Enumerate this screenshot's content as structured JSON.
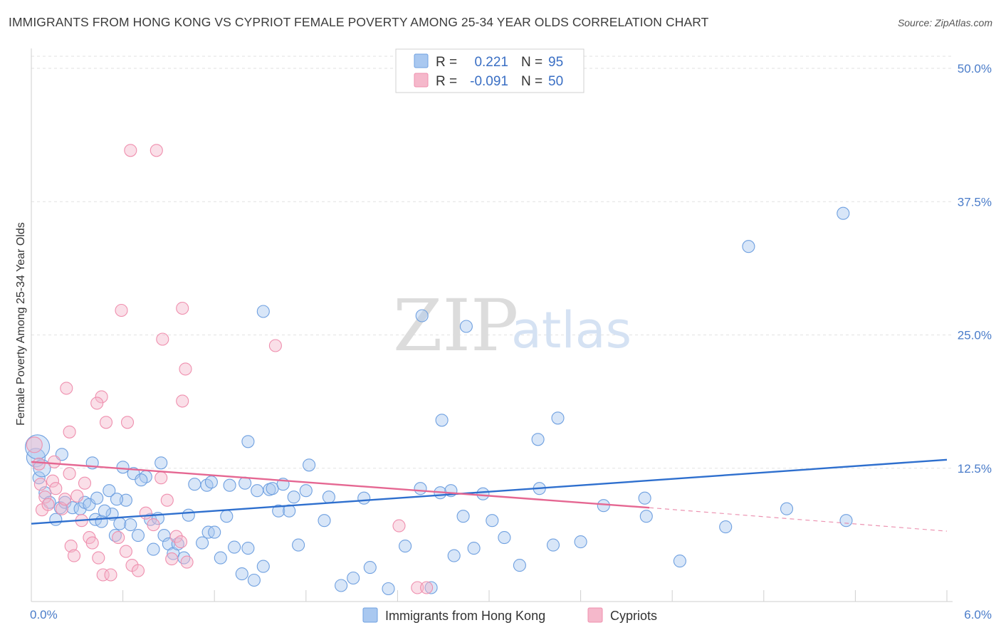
{
  "title": "IMMIGRANTS FROM HONG KONG VS CYPRIOT FEMALE POVERTY AMONG 25-34 YEAR OLDS CORRELATION CHART",
  "source": "Source: ZipAtlas.com",
  "watermark": {
    "zip": "ZIP",
    "atlas": "atlas"
  },
  "legend": {
    "rows": [
      {
        "r_label": "R =",
        "r_value": "0.221",
        "n_label": "N =",
        "n_value": "95",
        "color": "#a9c8f0"
      },
      {
        "r_label": "R =",
        "r_value": "-0.091",
        "n_label": "N =",
        "n_value": "50",
        "color": "#f5b8cb"
      }
    ]
  },
  "chart_data": {
    "type": "scatter",
    "xlabel": "",
    "ylabel": "Female Poverty Among 25-34 Year Olds",
    "xlim": [
      0,
      6
    ],
    "ylim": [
      0,
      50
    ],
    "x_ticks": [
      "0.0%",
      "6.0%"
    ],
    "y_ticks": [
      "12.5%",
      "25.0%",
      "37.5%",
      "50.0%"
    ],
    "y_tick_values": [
      12.5,
      25.0,
      37.5,
      50.0
    ],
    "grid": true,
    "legend_position": "top-center",
    "series": [
      {
        "name": "Immigrants from Hong Kong",
        "color": "#6fa0e0",
        "trend": {
          "x": [
            0,
            6
          ],
          "y": [
            7.3,
            13.3
          ]
        },
        "points": [
          [
            0.03,
            13.5
          ],
          [
            0.05,
            11.6
          ],
          [
            0.09,
            10.2
          ],
          [
            0.12,
            9.3
          ],
          [
            0.16,
            7.7
          ],
          [
            0.19,
            8.8
          ],
          [
            0.22,
            9.3
          ],
          [
            0.27,
            8.8
          ],
          [
            0.32,
            8.7
          ],
          [
            0.35,
            9.3
          ],
          [
            0.38,
            9.1
          ],
          [
            0.42,
            7.7
          ],
          [
            0.46,
            7.5
          ],
          [
            0.53,
            8.2
          ],
          [
            0.55,
            6.2
          ],
          [
            0.58,
            7.3
          ],
          [
            0.62,
            9.5
          ],
          [
            0.65,
            7.2
          ],
          [
            0.7,
            6.2
          ],
          [
            0.75,
            11.7
          ],
          [
            0.78,
            7.7
          ],
          [
            0.8,
            4.9
          ],
          [
            0.83,
            7.8
          ],
          [
            0.87,
            6.2
          ],
          [
            0.9,
            5.4
          ],
          [
            0.93,
            4.5
          ],
          [
            0.96,
            5.4
          ],
          [
            1.0,
            4.1
          ],
          [
            1.03,
            8.1
          ],
          [
            1.07,
            11.0
          ],
          [
            1.12,
            5.5
          ],
          [
            1.16,
            6.5
          ],
          [
            1.2,
            6.5
          ],
          [
            1.24,
            4.1
          ],
          [
            1.28,
            8.0
          ],
          [
            1.33,
            5.1
          ],
          [
            1.38,
            2.6
          ],
          [
            1.42,
            5.0
          ],
          [
            1.46,
            2.0
          ],
          [
            1.52,
            3.3
          ],
          [
            1.56,
            10.5
          ],
          [
            1.62,
            8.5
          ],
          [
            1.69,
            8.5
          ],
          [
            1.75,
            5.3
          ],
          [
            1.82,
            12.8
          ],
          [
            1.92,
            7.6
          ],
          [
            2.03,
            1.5
          ],
          [
            2.11,
            2.2
          ],
          [
            2.22,
            3.2
          ],
          [
            2.34,
            1.2
          ],
          [
            2.45,
            5.2
          ],
          [
            2.62,
            1.3
          ],
          [
            2.77,
            4.3
          ],
          [
            2.83,
            8.0
          ],
          [
            2.9,
            5.0
          ],
          [
            3.02,
            7.6
          ],
          [
            3.1,
            6.0
          ],
          [
            3.2,
            3.4
          ],
          [
            3.42,
            5.3
          ],
          [
            3.6,
            5.6
          ],
          [
            3.75,
            9.0
          ],
          [
            4.03,
            8.0
          ],
          [
            4.25,
            3.8
          ],
          [
            4.55,
            7.0
          ],
          [
            4.95,
            8.7
          ],
          [
            5.34,
            7.6
          ],
          [
            0.2,
            13.8
          ],
          [
            0.4,
            13.0
          ],
          [
            0.43,
            9.7
          ],
          [
            0.48,
            8.5
          ],
          [
            0.51,
            10.4
          ],
          [
            0.56,
            9.6
          ],
          [
            0.6,
            12.6
          ],
          [
            0.67,
            12.0
          ],
          [
            0.72,
            11.4
          ],
          [
            0.85,
            13.0
          ],
          [
            1.15,
            10.9
          ],
          [
            1.18,
            11.2
          ],
          [
            1.3,
            10.9
          ],
          [
            1.4,
            11.1
          ],
          [
            1.48,
            10.4
          ],
          [
            1.58,
            10.6
          ],
          [
            1.65,
            11.0
          ],
          [
            1.72,
            9.8
          ],
          [
            1.8,
            10.4
          ],
          [
            2.18,
            9.7
          ],
          [
            2.55,
            10.6
          ],
          [
            2.68,
            10.2
          ],
          [
            2.96,
            10.1
          ],
          [
            3.33,
            10.6
          ],
          [
            0.04,
            14.5
          ],
          [
            0.07,
            12.5
          ],
          [
            4.02,
            9.7
          ],
          [
            1.95,
            9.8
          ],
          [
            2.75,
            10.4
          ]
        ],
        "outliers": [
          [
            5.32,
            36.4
          ],
          [
            4.7,
            33.3
          ],
          [
            2.85,
            25.8
          ],
          [
            2.56,
            26.8
          ],
          [
            1.52,
            27.2
          ],
          [
            2.69,
            17.0
          ],
          [
            3.45,
            17.2
          ],
          [
            3.32,
            15.2
          ],
          [
            1.42,
            15.0
          ]
        ]
      },
      {
        "name": "Cypriots",
        "color": "#ef8fae",
        "trend": {
          "x": [
            0,
            4.05
          ],
          "y": [
            13.1,
            8.8
          ]
        },
        "trend_dashed": {
          "x": [
            4.05,
            6
          ],
          "y": [
            8.8,
            6.6
          ]
        },
        "points": [
          [
            0.02,
            14.7
          ],
          [
            0.05,
            12.9
          ],
          [
            0.06,
            11.0
          ],
          [
            0.07,
            8.6
          ],
          [
            0.09,
            9.8
          ],
          [
            0.11,
            9.1
          ],
          [
            0.14,
            11.3
          ],
          [
            0.16,
            10.6
          ],
          [
            0.2,
            8.7
          ],
          [
            0.22,
            9.6
          ],
          [
            0.26,
            5.2
          ],
          [
            0.28,
            4.3
          ],
          [
            0.3,
            9.9
          ],
          [
            0.33,
            7.6
          ],
          [
            0.35,
            11.1
          ],
          [
            0.38,
            6.0
          ],
          [
            0.4,
            5.5
          ],
          [
            0.44,
            4.1
          ],
          [
            0.47,
            2.5
          ],
          [
            0.52,
            2.5
          ],
          [
            0.57,
            6.0
          ],
          [
            0.62,
            4.7
          ],
          [
            0.66,
            3.4
          ],
          [
            0.7,
            2.9
          ],
          [
            0.75,
            8.3
          ],
          [
            0.8,
            7.2
          ],
          [
            0.85,
            11.6
          ],
          [
            0.89,
            9.5
          ],
          [
            0.92,
            4.0
          ],
          [
            0.95,
            6.1
          ],
          [
            0.98,
            5.6
          ],
          [
            1.02,
            3.7
          ],
          [
            2.41,
            7.1
          ],
          [
            2.53,
            1.3
          ],
          [
            2.59,
            1.3
          ],
          [
            0.15,
            13.1
          ],
          [
            0.25,
            12.0
          ]
        ],
        "outliers": [
          [
            0.65,
            42.3
          ],
          [
            0.82,
            42.3
          ],
          [
            0.59,
            27.3
          ],
          [
            0.99,
            27.5
          ],
          [
            0.86,
            24.6
          ],
          [
            1.6,
            24.0
          ],
          [
            1.01,
            21.8
          ],
          [
            0.23,
            20.0
          ],
          [
            0.46,
            19.2
          ],
          [
            0.43,
            18.6
          ],
          [
            0.99,
            18.8
          ],
          [
            0.49,
            16.8
          ],
          [
            0.63,
            16.8
          ],
          [
            0.25,
            15.9
          ]
        ]
      }
    ]
  }
}
